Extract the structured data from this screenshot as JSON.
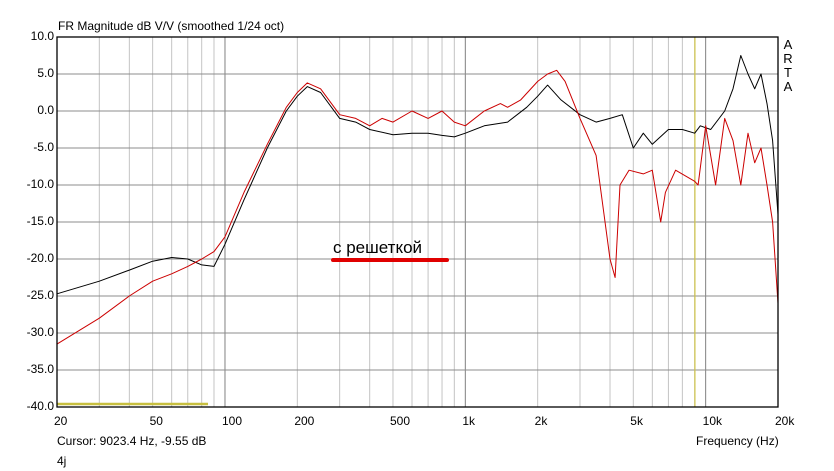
{
  "chart_data": {
    "type": "line",
    "title": "FR Magnitude dB V/V (smoothed 1/24 oct)",
    "xlabel": "Frequency (Hz)",
    "ylabel": "",
    "xscale": "log",
    "xlim": [
      20,
      20000
    ],
    "ylim": [
      -40,
      10
    ],
    "grid": true,
    "x_ticks": [
      20,
      50,
      100,
      200,
      500,
      1000,
      2000,
      5000,
      10000,
      20000
    ],
    "x_tick_labels": [
      "20",
      "50",
      "100",
      "200",
      "500",
      "1k",
      "2k",
      "5k",
      "10k",
      "20k"
    ],
    "y_ticks": [
      10,
      5,
      0,
      -5,
      -10,
      -15,
      -20,
      -25,
      -30,
      -35,
      -40
    ],
    "y_tick_labels": [
      "10.0",
      "5.0",
      "0.0",
      "-5.0",
      "-10.0",
      "-15.0",
      "-20.0",
      "-25.0",
      "-30.0",
      "-35.0",
      "-40.0"
    ],
    "series": [
      {
        "name": "black",
        "color": "#000000",
        "x": [
          20,
          30,
          40,
          50,
          60,
          70,
          80,
          90,
          100,
          120,
          150,
          180,
          200,
          220,
          250,
          300,
          350,
          400,
          500,
          600,
          700,
          800,
          900,
          1000,
          1200,
          1500,
          1800,
          2000,
          2200,
          2500,
          3000,
          3500,
          4000,
          4500,
          5000,
          5500,
          6000,
          7000,
          8000,
          9000,
          9500,
          10500,
          12000,
          13000,
          14000,
          15000,
          16000,
          17000,
          18000,
          19000,
          20000
        ],
        "y": [
          -24.7,
          -23,
          -21.5,
          -20.3,
          -19.8,
          -20,
          -20.8,
          -21,
          -18,
          -12,
          -5,
          0,
          2,
          3.3,
          2.5,
          -1,
          -1.5,
          -2.5,
          -3.2,
          -3,
          -3,
          -3.3,
          -3.5,
          -3,
          -2,
          -1.5,
          0.5,
          2,
          3.5,
          1.5,
          -0.5,
          -1.5,
          -1,
          -0.5,
          -5,
          -3,
          -4.5,
          -2.5,
          -2.5,
          -3,
          -2,
          -2.5,
          0,
          3,
          7.5,
          5,
          3,
          5,
          1,
          -4,
          -14
        ]
      },
      {
        "name": "red",
        "color": "#cc0000",
        "x": [
          20,
          30,
          40,
          50,
          60,
          70,
          80,
          90,
          100,
          120,
          150,
          180,
          200,
          220,
          250,
          300,
          350,
          400,
          450,
          500,
          600,
          700,
          800,
          900,
          1000,
          1200,
          1400,
          1500,
          1700,
          2000,
          2200,
          2400,
          2600,
          3000,
          3500,
          4000,
          4200,
          4400,
          4800,
          5500,
          6000,
          6500,
          6800,
          7500,
          9000,
          9300,
          10000,
          11000,
          12000,
          13000,
          14000,
          15000,
          16000,
          17000,
          18000,
          19000,
          20000
        ],
        "y": [
          -31.5,
          -28,
          -25,
          -23,
          -22,
          -21,
          -20,
          -19,
          -17,
          -11,
          -4.5,
          0.5,
          2.5,
          3.8,
          3,
          -0.5,
          -1,
          -2,
          -1,
          -1.5,
          0,
          -1,
          0,
          -1.5,
          -2,
          0,
          1,
          0.5,
          1.5,
          4,
          5,
          5.5,
          4,
          -1,
          -6,
          -20,
          -22.5,
          -10,
          -8,
          -8.5,
          -8,
          -15,
          -11,
          -8,
          -9.5,
          -10,
          -2,
          -10,
          -1,
          -4,
          -10,
          -3,
          -7,
          -5,
          -10,
          -15,
          -26
        ]
      }
    ],
    "cursor": {
      "frequency_hz": 9023.4,
      "level_db": -9.55,
      "color": "#d4c84a"
    },
    "marker_line": {
      "x": [
        20,
        85
      ],
      "y": -39.6,
      "color": "#c8c040"
    },
    "annotation": {
      "text": "с решеткой",
      "underline_color": "#e00000"
    }
  },
  "cursor_text": "Cursor: 9023.4 Hz, -9.55 dB",
  "footer_label": "4j",
  "watermark": "A R T A"
}
